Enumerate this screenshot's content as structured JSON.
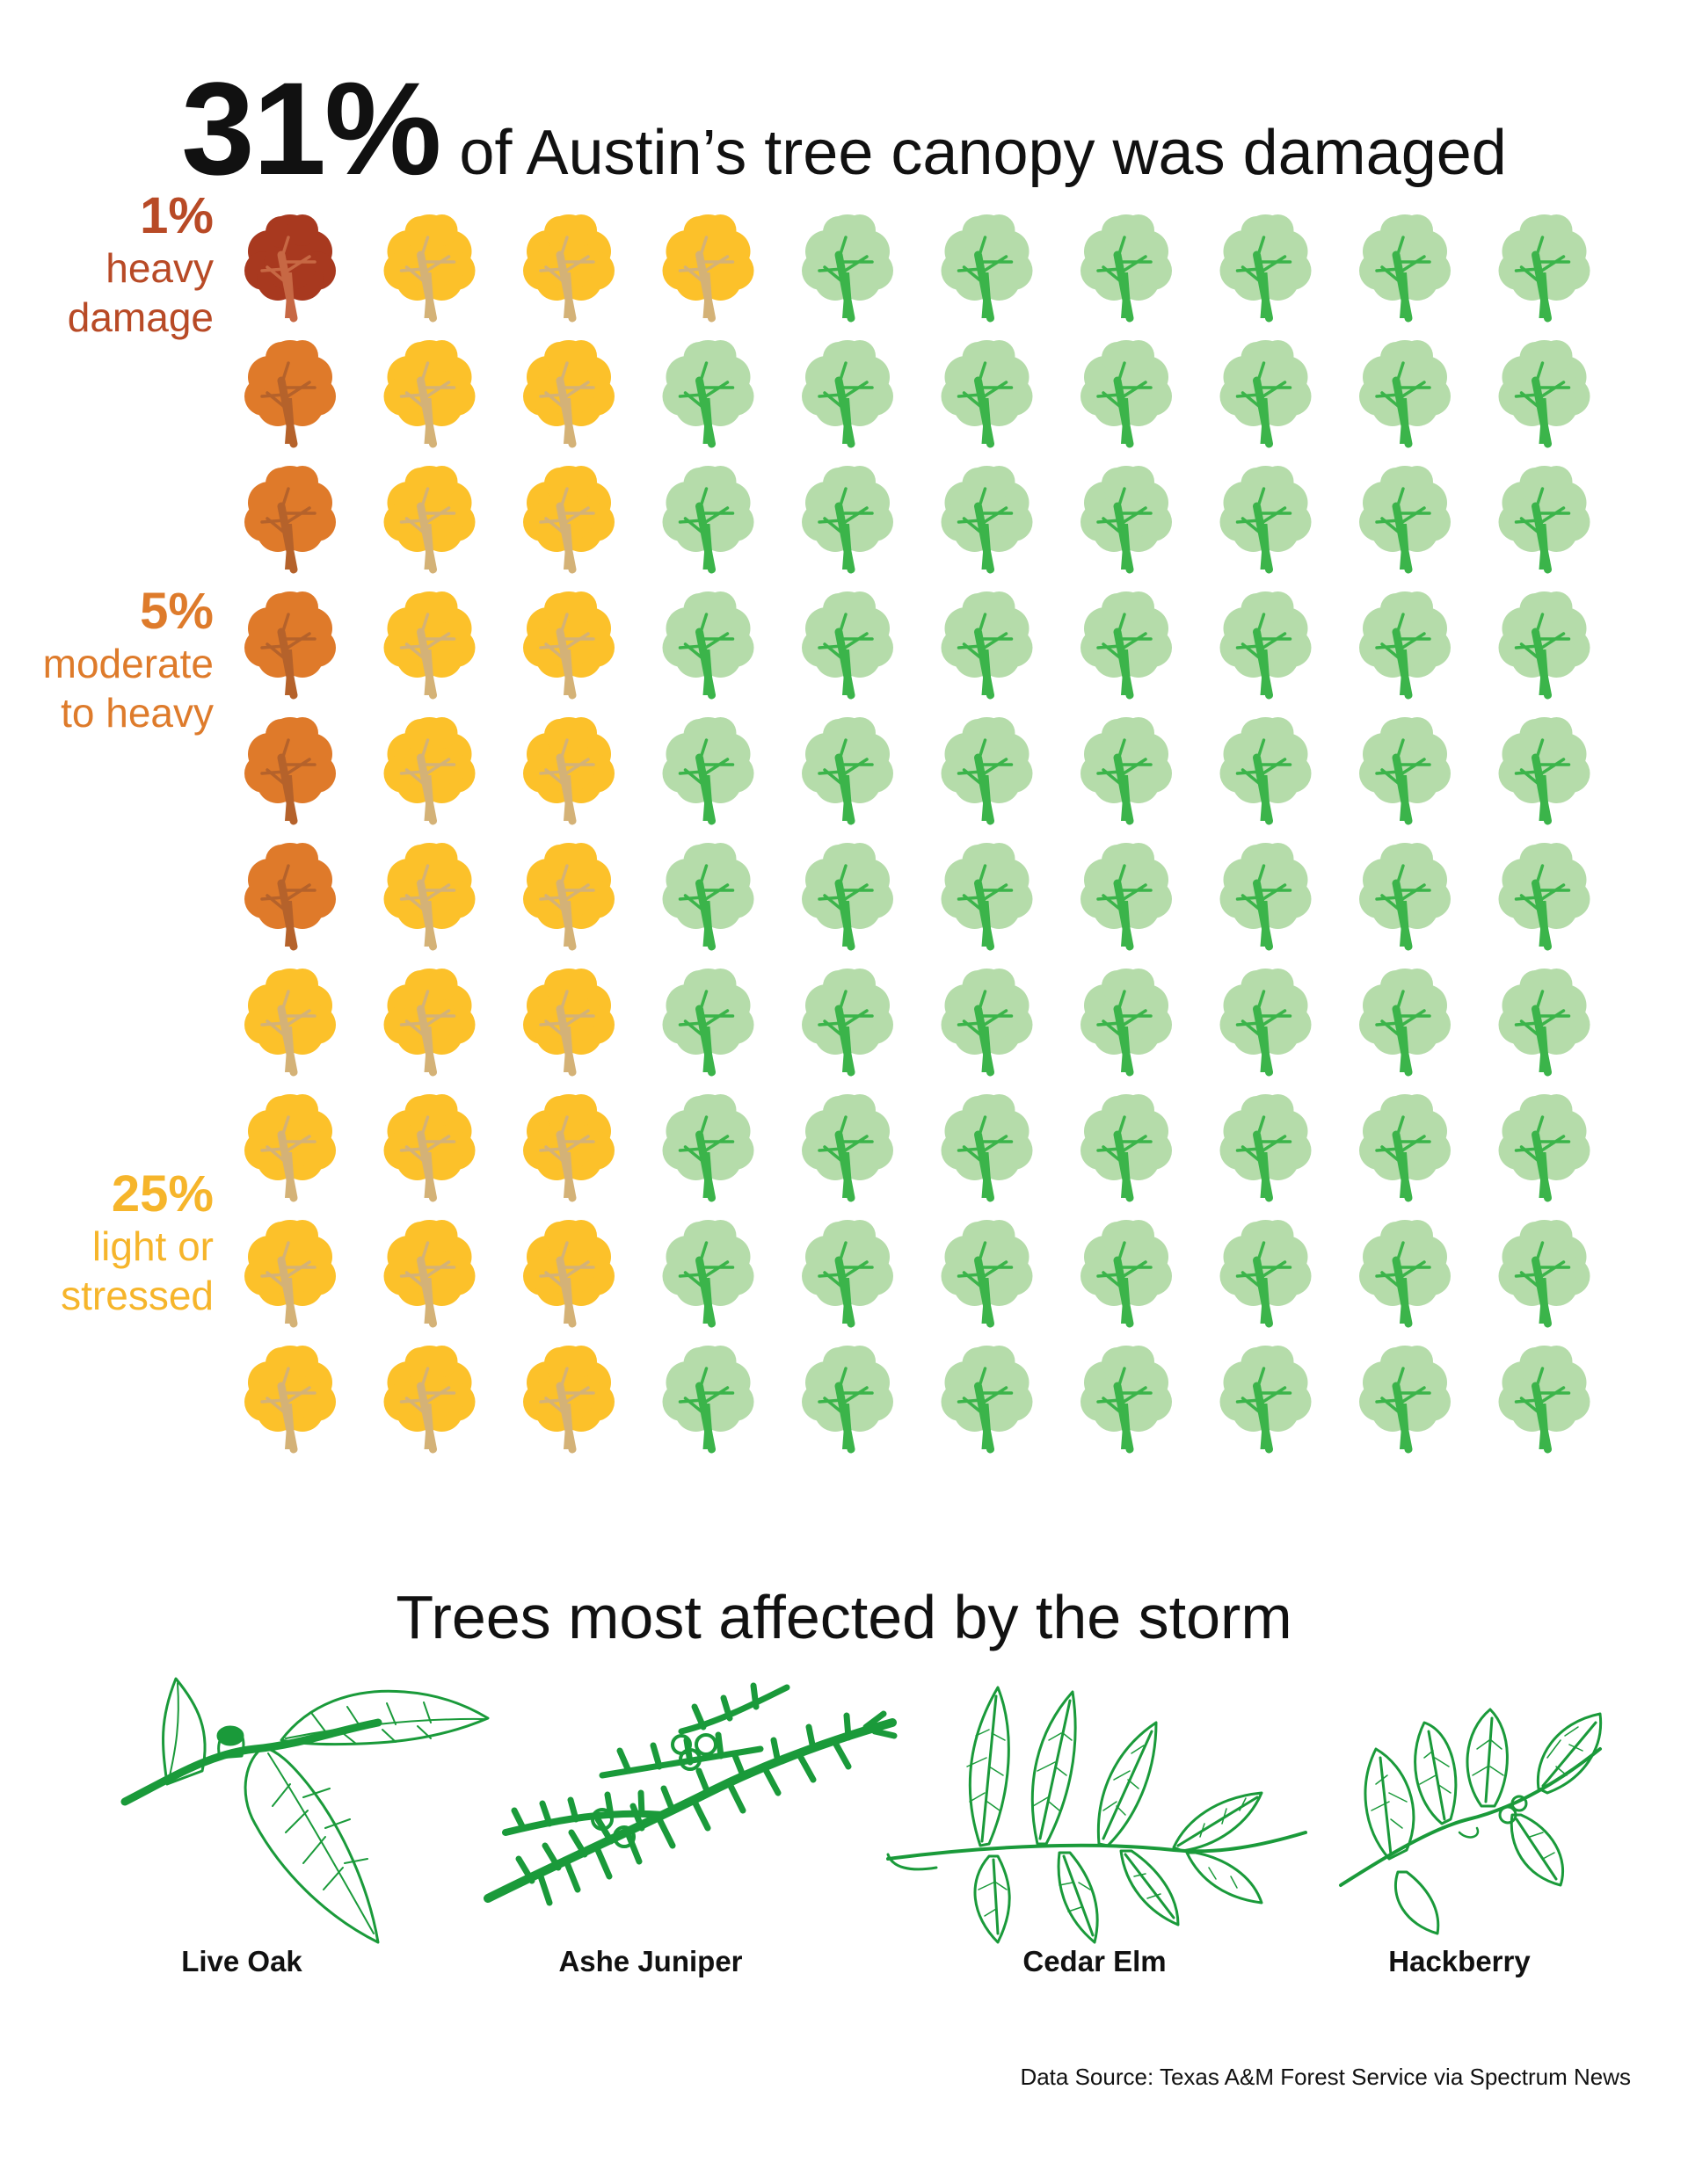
{
  "headline": {
    "big": "31%",
    "rest": "of Austin’s tree canopy was damaged"
  },
  "labels": [
    {
      "pct": "1%",
      "lines": [
        "heavy",
        "damage"
      ],
      "color": "#b84a26"
    },
    {
      "pct": "5%",
      "lines": [
        "moderate",
        "to heavy"
      ],
      "color": "#de7b2b"
    },
    {
      "pct": "25%",
      "lines": [
        "light or",
        "stressed"
      ],
      "color": "#f6b52b"
    }
  ],
  "chart_data": {
    "type": "waffle",
    "rows": 10,
    "cols": 10,
    "categories": [
      "heavy damage",
      "moderate to heavy",
      "light or stressed",
      "undamaged"
    ],
    "values": [
      1,
      5,
      25,
      69
    ],
    "colors": {
      "heavy": {
        "canopy": "#a8391f",
        "trunk": "#c76844"
      },
      "moderate": {
        "canopy": "#df7a2a",
        "trunk": "#b5622b"
      },
      "light": {
        "canopy": "#fcc12a",
        "trunk": "#d4b277"
      },
      "undamaged": {
        "canopy": "#b5dcaa",
        "trunk": "#3bb44a"
      }
    },
    "cells": [
      [
        "heavy",
        "light",
        "light",
        "light",
        "undamaged",
        "undamaged",
        "undamaged",
        "undamaged",
        "undamaged",
        "undamaged"
      ],
      [
        "moderate",
        "light",
        "light",
        "undamaged",
        "undamaged",
        "undamaged",
        "undamaged",
        "undamaged",
        "undamaged",
        "undamaged"
      ],
      [
        "moderate",
        "light",
        "light",
        "undamaged",
        "undamaged",
        "undamaged",
        "undamaged",
        "undamaged",
        "undamaged",
        "undamaged"
      ],
      [
        "moderate",
        "light",
        "light",
        "undamaged",
        "undamaged",
        "undamaged",
        "undamaged",
        "undamaged",
        "undamaged",
        "undamaged"
      ],
      [
        "moderate",
        "light",
        "light",
        "undamaged",
        "undamaged",
        "undamaged",
        "undamaged",
        "undamaged",
        "undamaged",
        "undamaged"
      ],
      [
        "moderate",
        "light",
        "light",
        "undamaged",
        "undamaged",
        "undamaged",
        "undamaged",
        "undamaged",
        "undamaged",
        "undamaged"
      ],
      [
        "light",
        "light",
        "light",
        "undamaged",
        "undamaged",
        "undamaged",
        "undamaged",
        "undamaged",
        "undamaged",
        "undamaged"
      ],
      [
        "light",
        "light",
        "light",
        "undamaged",
        "undamaged",
        "undamaged",
        "undamaged",
        "undamaged",
        "undamaged",
        "undamaged"
      ],
      [
        "light",
        "light",
        "light",
        "undamaged",
        "undamaged",
        "undamaged",
        "undamaged",
        "undamaged",
        "undamaged",
        "undamaged"
      ],
      [
        "light",
        "light",
        "light",
        "undamaged",
        "undamaged",
        "undamaged",
        "undamaged",
        "undamaged",
        "undamaged",
        "undamaged"
      ]
    ]
  },
  "section_title": "Trees most affected by the storm",
  "species": [
    "Live Oak",
    "Ashe Juniper",
    "Cedar Elm",
    "Hackberry"
  ],
  "leaf_color": "#1a9a3a",
  "source": "Data Source: Texas A&M Forest Service via Spectrum News"
}
